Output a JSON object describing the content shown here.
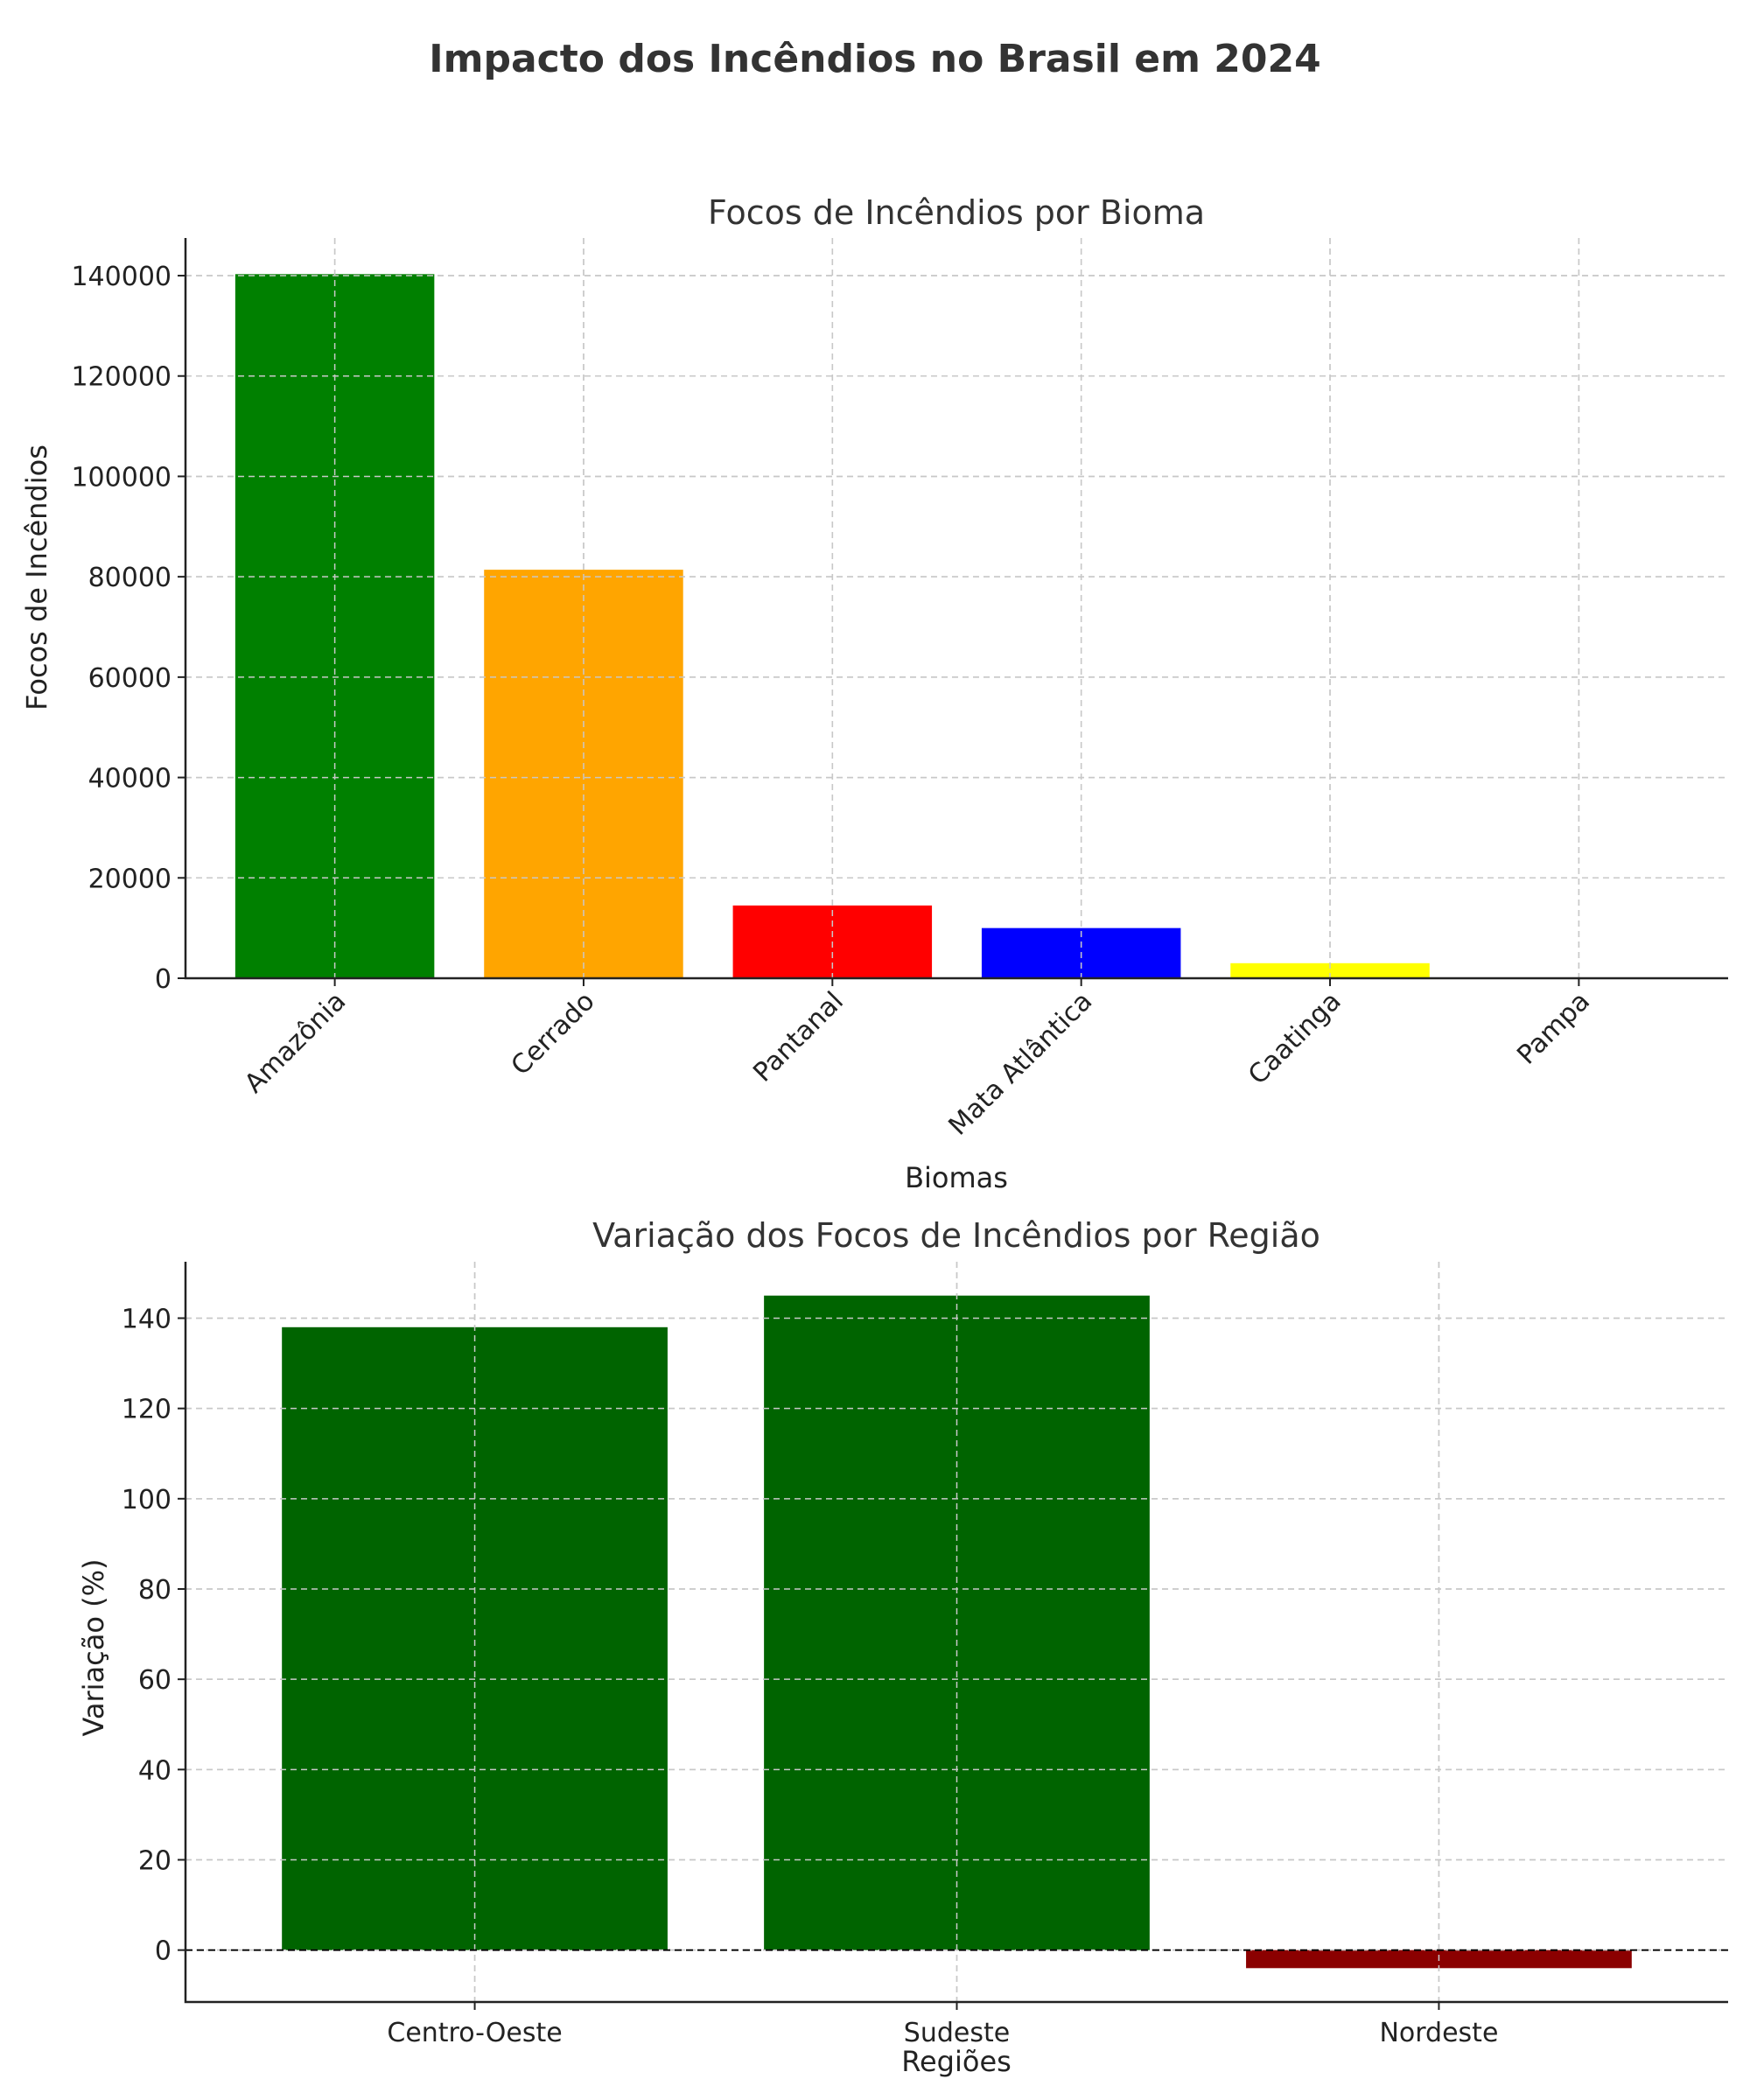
{
  "suptitle": "Impacto dos Incêndios no Brasil em 2024",
  "chart_data": [
    {
      "type": "bar",
      "title": "Focos de Incêndios por Bioma",
      "xlabel": "Biomas",
      "ylabel": "Focos de Incêndios",
      "categories": [
        "Amazônia",
        "Cerrado",
        "Pantanal",
        "Mata Atlântica",
        "Caatinga",
        "Pampa"
      ],
      "values": [
        140300,
        81400,
        14500,
        10000,
        3000,
        150
      ],
      "colors": [
        "#008000",
        "#ffa500",
        "#ff0000",
        "#0000ff",
        "#ffff00",
        "#800080"
      ],
      "yticks": [
        0,
        20000,
        40000,
        60000,
        80000,
        100000,
        120000,
        140000
      ],
      "ylim": [
        0,
        147500
      ],
      "grid": true,
      "xtick_rotation": 45
    },
    {
      "type": "bar",
      "title": "Variação dos Focos de Incêndios por Região",
      "xlabel": "Regiões",
      "ylabel": "Variação (%)",
      "categories": [
        "Centro-Oeste",
        "Sudeste",
        "Nordeste"
      ],
      "values": [
        138,
        145,
        -4
      ],
      "colors": [
        "#006400",
        "#006400",
        "#8b0000"
      ],
      "yticks": [
        0,
        20,
        40,
        60,
        80,
        100,
        120,
        140
      ],
      "ylim": [
        -11.5,
        152.5
      ],
      "grid": true,
      "zero_line": true
    }
  ]
}
